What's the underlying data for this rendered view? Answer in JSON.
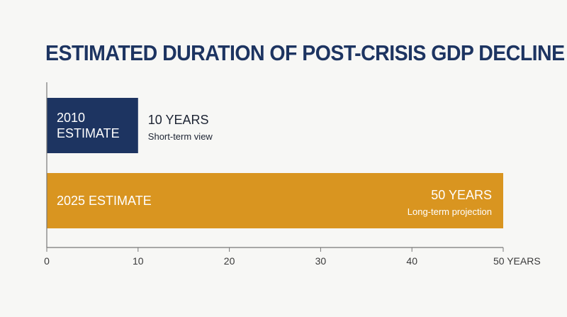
{
  "colors": {
    "navy": "#1d3461",
    "gold": "#d99520",
    "axis": "#777777",
    "text": "#1d2433"
  },
  "chart_data": {
    "type": "bar",
    "orientation": "horizontal",
    "title": "ESTIMATED DURATION OF POST-CRISIS GDP DECLINE",
    "bars": [
      {
        "label_lines": [
          "2010",
          "ESTIMATE"
        ],
        "value": 10,
        "value_label": "10 YEARS",
        "note": "Short-term view",
        "color": "#1d3461"
      },
      {
        "label_lines": [
          "2025 ESTIMATE"
        ],
        "value": 50,
        "value_label": "50 YEARS",
        "note": "Long-term projection",
        "color": "#d99520"
      }
    ],
    "xlim": [
      0,
      50
    ],
    "x_ticks": [
      0,
      10,
      20,
      30,
      40,
      50
    ],
    "x_tick_labels": [
      "0",
      "10",
      "20",
      "30",
      "40",
      "50 YEARS"
    ],
    "grid": false,
    "legend": "none"
  }
}
